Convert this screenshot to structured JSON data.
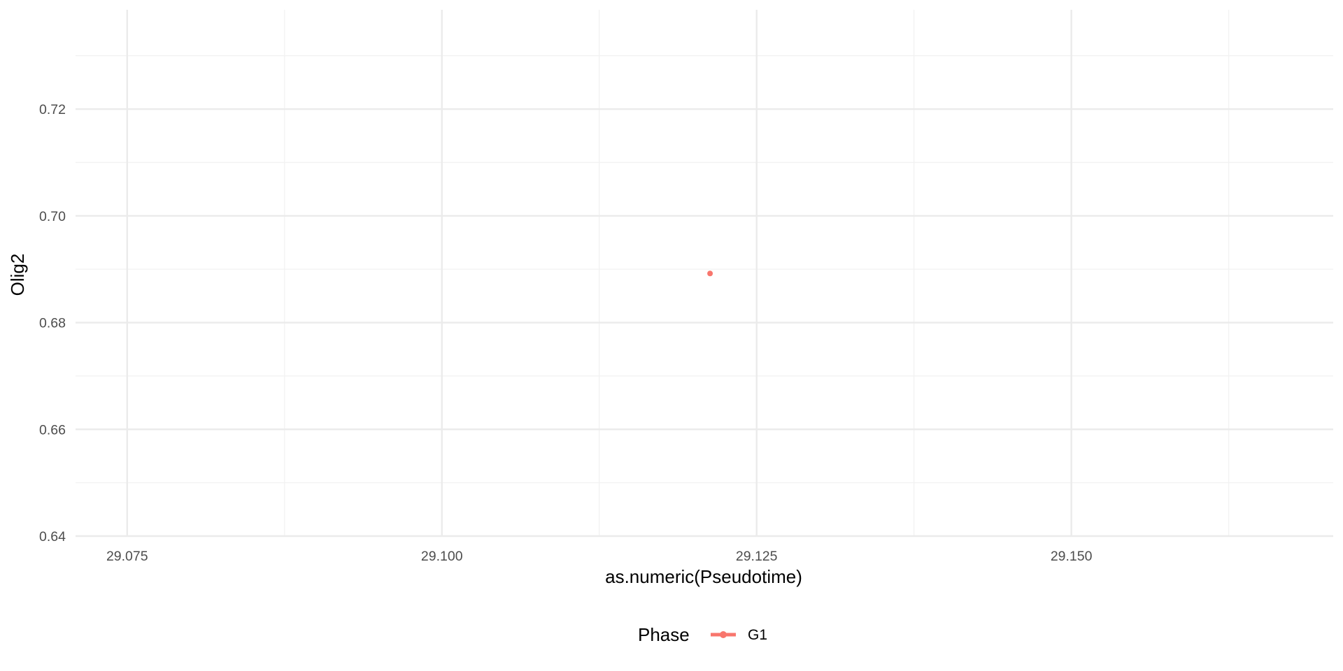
{
  "chart_data": {
    "type": "scatter",
    "title": "",
    "xlabel": "as.numeric(Pseudotime)",
    "ylabel": "Olig2",
    "xlim": [
      29.0709,
      29.1708
    ],
    "ylim": [
      0.64,
      0.7386
    ],
    "x_ticks": [
      29.075,
      29.1,
      29.125,
      29.15
    ],
    "x_tick_labels": [
      "29.075",
      "29.100",
      "29.125",
      "29.150"
    ],
    "y_ticks": [
      0.64,
      0.66,
      0.68,
      0.7,
      0.72
    ],
    "y_tick_labels": [
      "0.64",
      "0.66",
      "0.68",
      "0.70",
      "0.72"
    ],
    "grid": true,
    "legend": {
      "position": "bottom",
      "title": "Phase",
      "entries": [
        "G1"
      ]
    },
    "series": [
      {
        "name": "G1",
        "color": "#F8766D",
        "points": [
          {
            "x": 29.1213,
            "y": 0.6892
          }
        ]
      }
    ]
  }
}
